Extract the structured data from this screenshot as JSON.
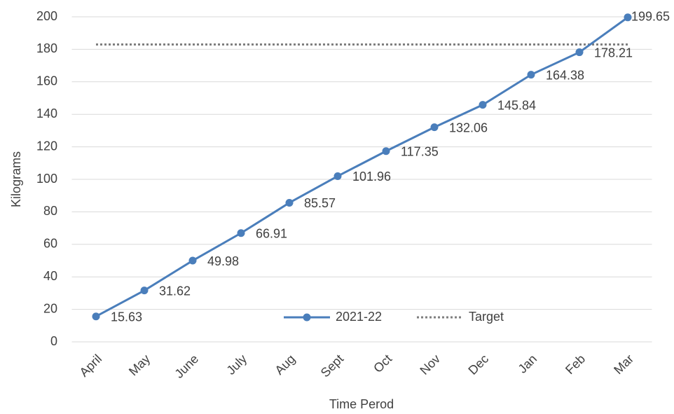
{
  "chart_data": {
    "type": "line",
    "x_label": "Time Perod",
    "y_label": "Kilograms",
    "categories": [
      "April",
      "May",
      "June",
      "July",
      "Aug",
      "Sept",
      "Oct",
      "Nov",
      "Dec",
      "Jan",
      "Feb",
      "Mar"
    ],
    "series": [
      {
        "name": "2021-22",
        "color": "#4a7ebb",
        "marker": "circle",
        "line_style": "solid",
        "data_labels": true,
        "values": [
          15.63,
          31.62,
          49.98,
          66.91,
          85.57,
          101.96,
          117.35,
          132.06,
          145.84,
          164.38,
          178.21,
          199.65
        ]
      },
      {
        "name": "Target",
        "color": "#7f7f7f",
        "marker": "none",
        "line_style": "dotted",
        "data_labels": false,
        "values": [
          183,
          183,
          183,
          183,
          183,
          183,
          183,
          183,
          183,
          183,
          183,
          183
        ]
      }
    ],
    "ylim": [
      0,
      200
    ],
    "yticks": [
      0,
      20,
      40,
      60,
      80,
      100,
      120,
      140,
      160,
      180,
      200
    ],
    "grid": true,
    "legend": "bottom"
  }
}
